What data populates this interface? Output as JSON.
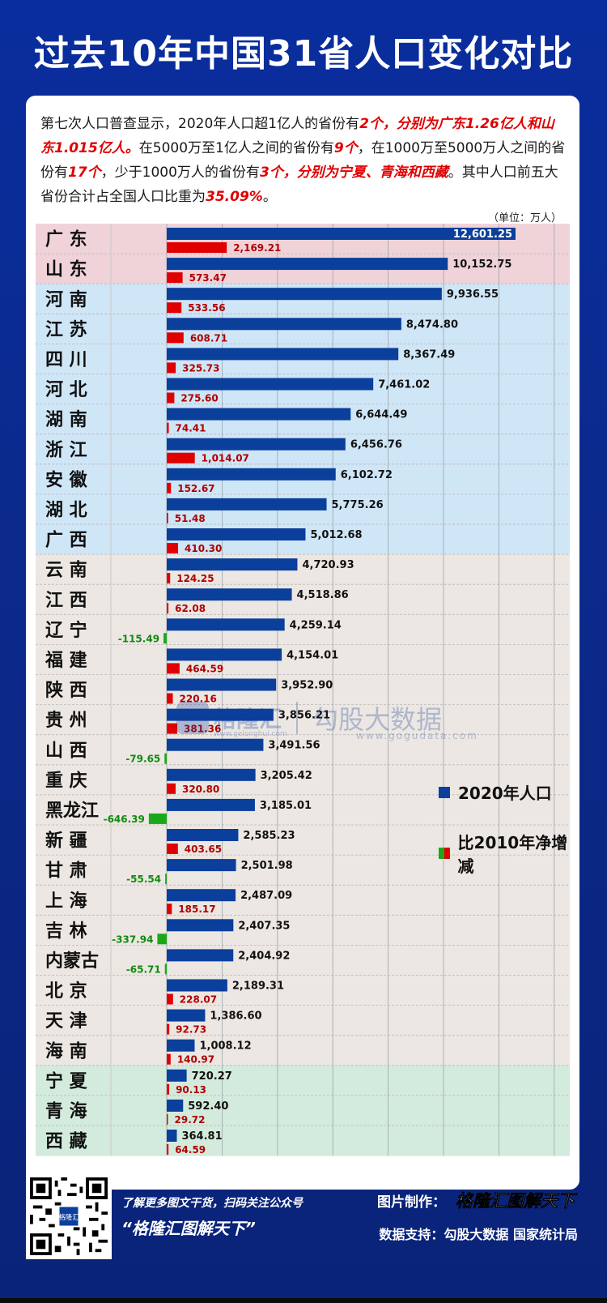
{
  "title": "过去10年中国31省人口变化对比",
  "intro": {
    "p1": "第七次人口普查显示，2020年人口超1亿人的省份有",
    "h1": "2个，分别为广东1.26亿人和山东1.015亿人。",
    "p2": "在5000万至1亿人之间的省份有",
    "h2": "9个",
    "p3": "，在1000万至5000万人之间的省份有",
    "h3": "17个",
    "p4": "，少于1000万人的省份有",
    "h4": "3个，分别为宁夏、青海和西藏",
    "p5": "。其中人口前五大省份合计占全国人口比重为",
    "h5": "35.09%",
    "p6": "。"
  },
  "unit": "（单位：万人）",
  "legend": {
    "pop": "2020年人口",
    "change": "比2010年净增减"
  },
  "colors": {
    "pop_bar": "#0b3f9c",
    "pos_bar": "#e00000",
    "neg_bar": "#1aa81a",
    "band_pink": "#f0d3d9",
    "band_blue": "#cfe6f7",
    "band_beige": "#ece7e2",
    "band_green": "#d3ebdc"
  },
  "watermark": {
    "brand1": "格隆汇",
    "url1": "www.gelonghui.com",
    "brand2": "勾股大数据",
    "url2": "www.gogudata.com"
  },
  "footer": {
    "qr_label": "格隆汇",
    "left1": "了解更多图文干货，扫码关注公众号",
    "left2": "“格隆汇图解天下”",
    "right1_label": "图片制作：",
    "right1_brand": "格隆汇图解天下",
    "right2": "数据支持：勾股大数据 国家统计局"
  },
  "chart_data": {
    "type": "bar",
    "orientation": "horizontal",
    "x_max": 15000,
    "grid": true,
    "legend_position": "right-middle",
    "categories": [
      "广 东",
      "山 东",
      "河 南",
      "江 苏",
      "四 川",
      "河 北",
      "湖 南",
      "浙 江",
      "安 徽",
      "湖 北",
      "广 西",
      "云 南",
      "江 西",
      "辽 宁",
      "福 建",
      "陕 西",
      "贵 州",
      "山 西",
      "重 庆",
      "黑龙江",
      "新 疆",
      "甘 肃",
      "上 海",
      "吉 林",
      "内蒙古",
      "北 京",
      "天 津",
      "海 南",
      "宁 夏",
      "青 海",
      "西 藏"
    ],
    "groups": [
      "pink",
      "pink",
      "blue",
      "blue",
      "blue",
      "blue",
      "blue",
      "blue",
      "blue",
      "blue",
      "blue",
      "beige",
      "beige",
      "beige",
      "beige",
      "beige",
      "beige",
      "beige",
      "beige",
      "beige",
      "beige",
      "beige",
      "beige",
      "beige",
      "beige",
      "beige",
      "beige",
      "beige",
      "green",
      "green",
      "green"
    ],
    "series": [
      {
        "name": "2020年人口",
        "values": [
          12601.25,
          10152.75,
          9936.55,
          8474.8,
          8367.49,
          7461.02,
          6644.49,
          6456.76,
          6102.72,
          5775.26,
          5012.68,
          4720.93,
          4518.86,
          4259.14,
          4154.01,
          3952.9,
          3856.21,
          3491.56,
          3205.42,
          3185.01,
          2585.23,
          2501.98,
          2487.09,
          2407.35,
          2404.92,
          2189.31,
          1386.6,
          1008.12,
          720.27,
          592.4,
          364.81
        ],
        "labels": [
          "12,601.25",
          "10,152.75",
          "9,936.55",
          "8,474.80",
          "8,367.49",
          "7,461.02",
          "6,644.49",
          "6,456.76",
          "6,102.72",
          "5,775.26",
          "5,012.68",
          "4,720.93",
          "4,518.86",
          "4,259.14",
          "4,154.01",
          "3,952.90",
          "3,856.21",
          "3,491.56",
          "3,205.42",
          "3,185.01",
          "2,585.23",
          "2,501.98",
          "2,487.09",
          "2,407.35",
          "2,404.92",
          "2,189.31",
          "1,386.60",
          "1,008.12",
          "720.27",
          "592.40",
          "364.81"
        ]
      },
      {
        "name": "比2010年净增减",
        "values": [
          2169.21,
          573.47,
          533.56,
          608.71,
          325.73,
          275.6,
          74.41,
          1014.07,
          152.67,
          51.48,
          410.3,
          124.25,
          62.08,
          -115.49,
          464.59,
          220.16,
          381.36,
          -79.65,
          320.8,
          -646.39,
          403.65,
          -55.54,
          185.17,
          -337.94,
          -65.71,
          228.07,
          92.73,
          140.97,
          90.13,
          29.72,
          64.59
        ],
        "labels": [
          "2,169.21",
          "573.47",
          "533.56",
          "608.71",
          "325.73",
          "275.60",
          "74.41",
          "1,014.07",
          "152.67",
          "51.48",
          "410.30",
          "124.25",
          "62.08",
          "-115.49",
          "464.59",
          "220.16",
          "381.36",
          "-79.65",
          "320.80",
          "-646.39",
          "403.65",
          "-55.54",
          "185.17",
          "-337.94",
          "-65.71",
          "228.07",
          "92.73",
          "140.97",
          "90.13",
          "29.72",
          "64.59"
        ]
      }
    ]
  }
}
